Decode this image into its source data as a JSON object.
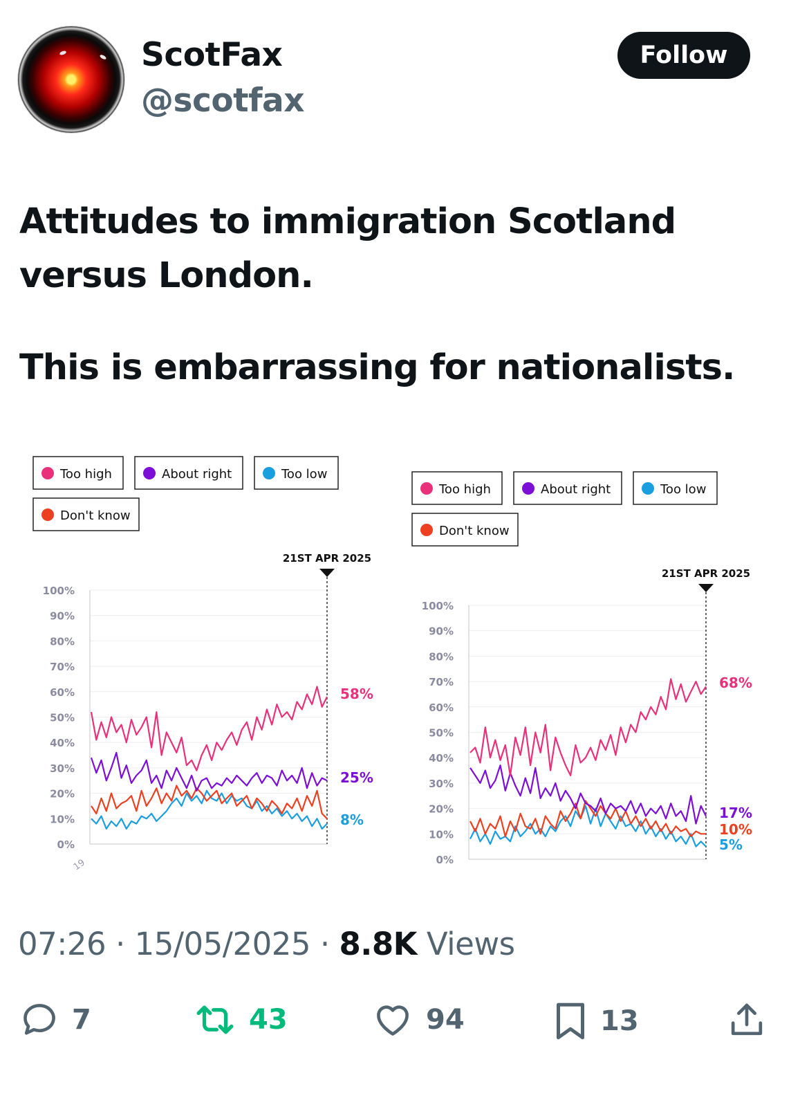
{
  "author": {
    "name": "ScotFax",
    "handle": "@scotfax",
    "follow_label": "Follow"
  },
  "tweet": {
    "line1": "Attitudes to immigration Scotland versus London.",
    "line2": "This is embarrassing for nationalists."
  },
  "meta": {
    "time": "07:26",
    "sep": "·",
    "date": "15/05/2025",
    "views_count": "8.8K",
    "views_label": "Views"
  },
  "actions": {
    "replies": "7",
    "reposts": "43",
    "likes": "94",
    "bookmarks": "13"
  },
  "colors": {
    "too_high": "#e8317a",
    "about_right": "#7b0fd6",
    "too_low": "#1a9ee0",
    "dont_know": "#ec4020",
    "repost_active": "#00ba7c",
    "muted": "#536471"
  },
  "chart_data": [
    {
      "type": "line",
      "legend": [
        "Too high",
        "About right",
        "Too low",
        "Don't know"
      ],
      "marker_label": "21ST APR 2025",
      "x_tick_partial": "19",
      "y_ticks": [
        "100%",
        "90%",
        "80%",
        "70%",
        "60%",
        "50%",
        "40%",
        "30%",
        "20%",
        "10%",
        "0%"
      ],
      "ylim": [
        0,
        100
      ],
      "end_labels": {
        "too_high": "58%",
        "about_right": "25%",
        "too_low": "8%"
      },
      "series": [
        {
          "name": "Too high",
          "values": [
            52,
            41,
            48,
            42,
            50,
            44,
            47,
            40,
            49,
            43,
            46,
            50,
            38,
            52,
            35,
            44,
            40,
            36,
            42,
            31,
            33,
            29,
            35,
            39,
            33,
            40,
            37,
            41,
            44,
            39,
            45,
            48,
            41,
            50,
            45,
            53,
            47,
            55,
            50,
            52,
            49,
            56,
            53,
            59,
            55,
            62,
            54,
            58
          ]
        },
        {
          "name": "About right",
          "values": [
            34,
            28,
            33,
            25,
            30,
            36,
            26,
            31,
            24,
            27,
            29,
            33,
            24,
            27,
            22,
            29,
            25,
            30,
            26,
            22,
            27,
            21,
            25,
            26,
            22,
            24,
            23,
            26,
            24,
            27,
            25,
            23,
            26,
            28,
            24,
            27,
            26,
            23,
            29,
            25,
            27,
            24,
            30,
            22,
            28,
            23,
            26,
            25
          ]
        },
        {
          "name": "Too low",
          "values": [
            10,
            8,
            11,
            6,
            9,
            7,
            10,
            6,
            9,
            8,
            11,
            10,
            12,
            9,
            11,
            13,
            16,
            18,
            15,
            20,
            17,
            19,
            16,
            21,
            18,
            17,
            20,
            16,
            19,
            17,
            18,
            15,
            14,
            17,
            13,
            15,
            12,
            14,
            11,
            13,
            10,
            12,
            9,
            11,
            7,
            10,
            6,
            8
          ]
        },
        {
          "name": "Don't know",
          "values": [
            15,
            12,
            18,
            13,
            20,
            14,
            16,
            17,
            19,
            13,
            21,
            15,
            18,
            22,
            16,
            20,
            17,
            23,
            19,
            21,
            18,
            22,
            20,
            17,
            19,
            21,
            16,
            18,
            20,
            15,
            17,
            19,
            14,
            18,
            16,
            13,
            17,
            15,
            12,
            16,
            14,
            18,
            13,
            19,
            15,
            21,
            12,
            10
          ]
        }
      ]
    },
    {
      "type": "line",
      "legend": [
        "Too high",
        "About right",
        "Too low",
        "Don't know"
      ],
      "marker_label": "21ST APR 2025",
      "y_ticks": [
        "100%",
        "90%",
        "80%",
        "70%",
        "60%",
        "50%",
        "40%",
        "30%",
        "20%",
        "10%",
        "0%"
      ],
      "ylim": [
        0,
        100
      ],
      "end_labels": {
        "too_high": "68%",
        "about_right": "17%",
        "dont_know": "10%",
        "too_low": "5%"
      },
      "series": [
        {
          "name": "Too high",
          "values": [
            42,
            44,
            38,
            52,
            40,
            47,
            39,
            45,
            33,
            48,
            41,
            52,
            37,
            50,
            42,
            53,
            35,
            48,
            42,
            37,
            33,
            45,
            38,
            40,
            44,
            39,
            47,
            43,
            49,
            41,
            52,
            46,
            53,
            50,
            58,
            55,
            60,
            57,
            64,
            59,
            71,
            63,
            69,
            62,
            66,
            70,
            65,
            68
          ]
        },
        {
          "name": "About right",
          "values": [
            36,
            33,
            30,
            35,
            28,
            31,
            37,
            27,
            34,
            29,
            25,
            32,
            26,
            36,
            24,
            28,
            25,
            30,
            23,
            27,
            24,
            20,
            26,
            22,
            21,
            19,
            24,
            18,
            22,
            20,
            21,
            19,
            23,
            18,
            22,
            17,
            20,
            18,
            21,
            16,
            22,
            17,
            19,
            15,
            25,
            14,
            21,
            17
          ]
        },
        {
          "name": "Too low",
          "values": [
            8,
            12,
            7,
            10,
            6,
            11,
            8,
            9,
            7,
            13,
            9,
            11,
            14,
            10,
            12,
            9,
            13,
            11,
            15,
            17,
            13,
            19,
            16,
            21,
            14,
            20,
            13,
            18,
            15,
            12,
            17,
            13,
            14,
            11,
            15,
            10,
            13,
            9,
            12,
            8,
            11,
            7,
            9,
            6,
            10,
            5,
            7,
            5
          ]
        },
        {
          "name": "Don't know",
          "values": [
            15,
            11,
            16,
            10,
            14,
            12,
            17,
            9,
            15,
            11,
            18,
            13,
            12,
            16,
            10,
            17,
            14,
            12,
            19,
            15,
            18,
            22,
            16,
            23,
            20,
            17,
            21,
            18,
            16,
            20,
            15,
            19,
            14,
            17,
            13,
            16,
            12,
            15,
            11,
            14,
            10,
            13,
            11,
            12,
            9,
            11,
            10,
            10
          ]
        }
      ]
    }
  ]
}
